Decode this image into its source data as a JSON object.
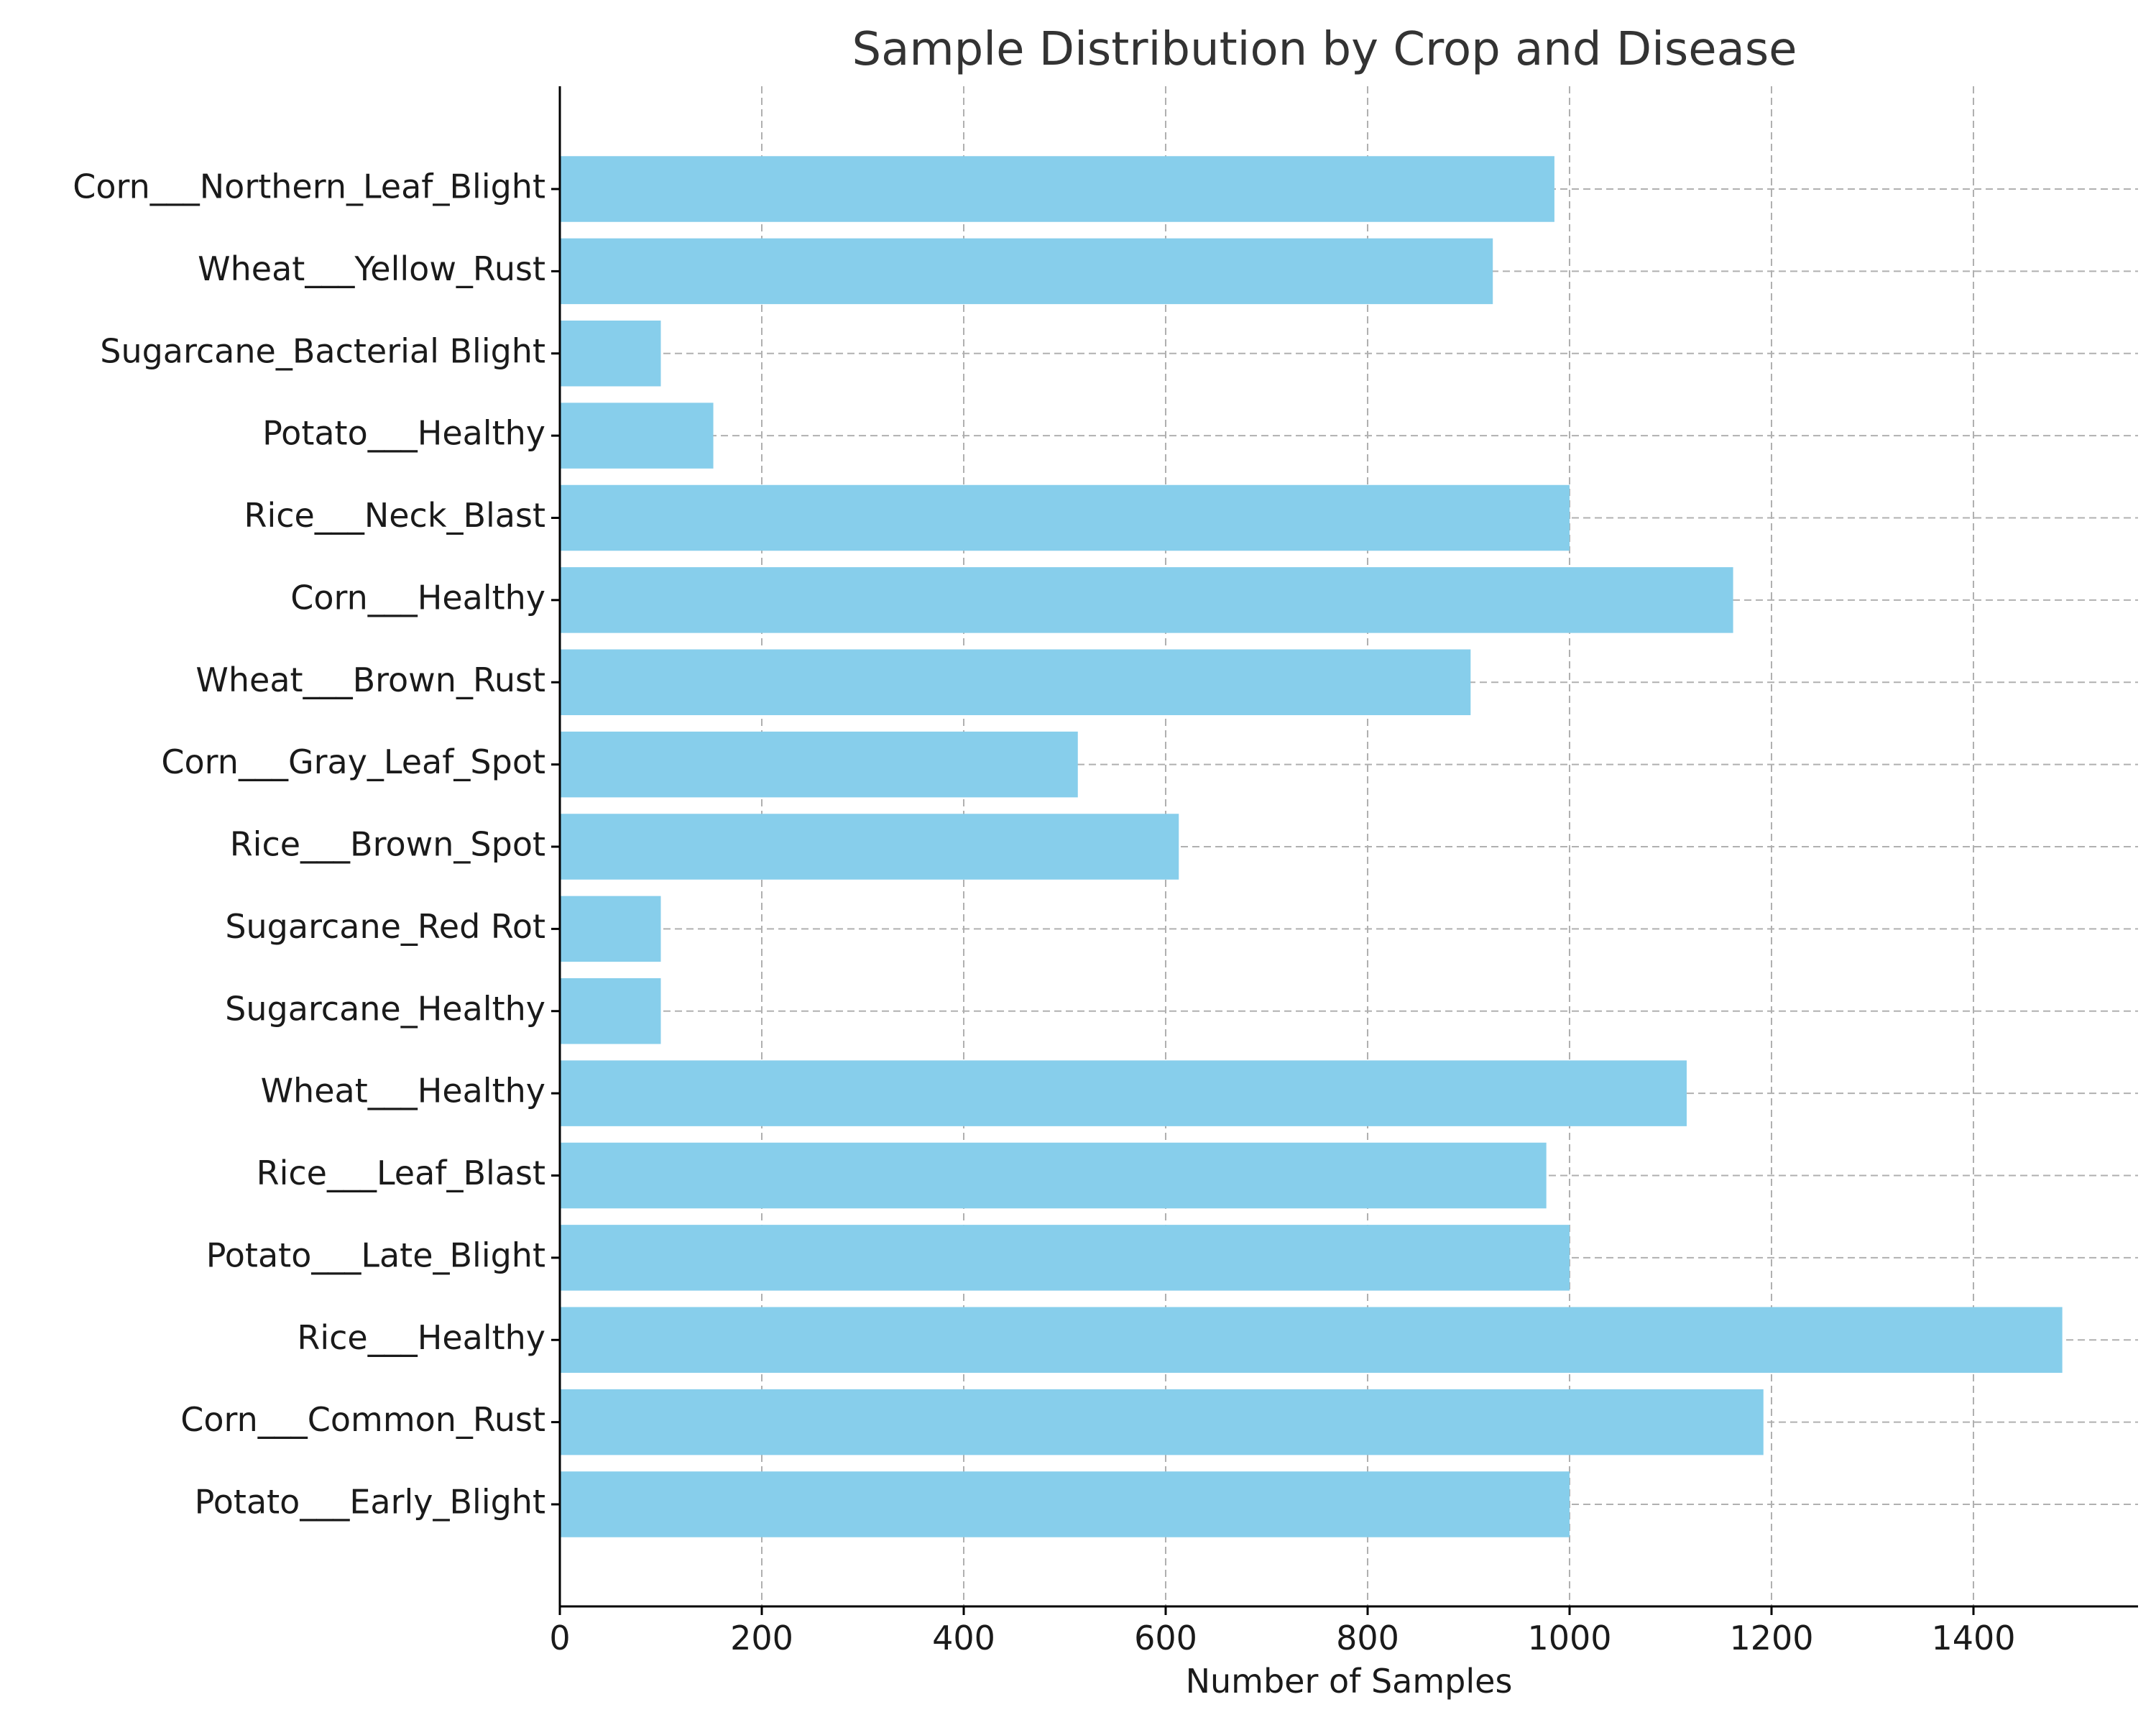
{
  "chart_data": {
    "type": "bar",
    "orientation": "horizontal",
    "title": "Sample Distribution by Crop and Disease",
    "xlabel": "Number of Samples",
    "ylabel": "",
    "categories": [
      "Potato___Early_Blight",
      "Corn___Common_Rust",
      "Rice___Healthy",
      "Potato___Late_Blight",
      "Rice___Leaf_Blast",
      "Wheat___Healthy",
      "Sugarcane_Healthy",
      "Sugarcane_Red Rot",
      "Rice___Brown_Spot",
      "Corn___Gray_Leaf_Spot",
      "Wheat___Brown_Rust",
      "Corn___Healthy",
      "Rice___Neck_Blast",
      "Potato___Healthy",
      "Sugarcane_Bacterial Blight",
      "Wheat___Yellow_Rust",
      "Corn___Northern_Leaf_Blight"
    ],
    "values": [
      1000,
      1192,
      1488,
      1000,
      977,
      1116,
      100,
      100,
      613,
      513,
      902,
      1162,
      1000,
      152,
      100,
      924,
      985
    ],
    "xlim": [
      0,
      1563
    ],
    "xticks": [
      0,
      200,
      400,
      600,
      800,
      1000,
      1200,
      1400
    ],
    "grid": true,
    "bar_color": "#87CEEB"
  }
}
